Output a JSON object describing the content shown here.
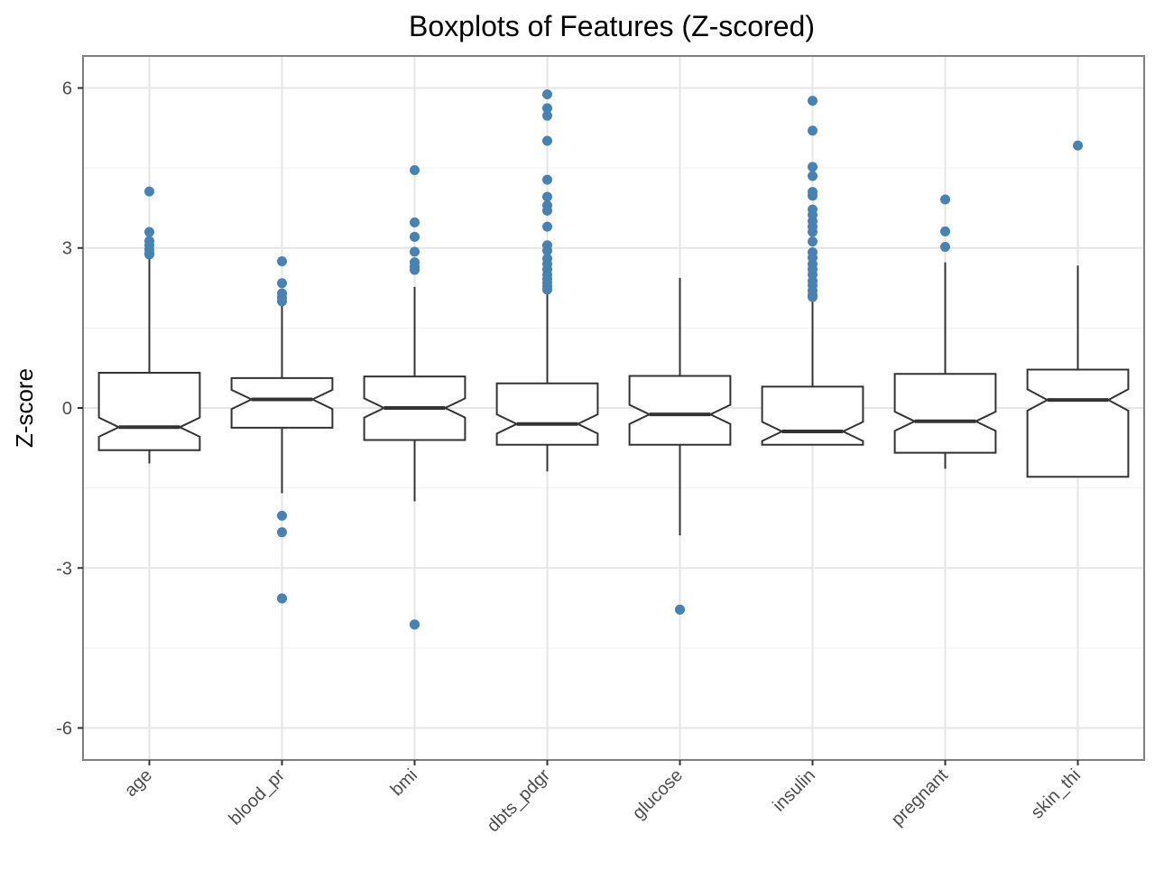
{
  "chart_data": {
    "type": "boxplot",
    "title": "Boxplots of Features (Z-scored)",
    "xlabel": "",
    "ylabel": "Z-score",
    "ylim": [
      -6.6,
      6.6
    ],
    "yticks": [
      -6,
      -3,
      0,
      3,
      6
    ],
    "ytick_labels": [
      "-6",
      "-3",
      "0",
      "3",
      "6"
    ],
    "grid": true,
    "notched": true,
    "colors": {
      "box_line": "#333333",
      "outlier": "#4682b4",
      "grid_major": "#e5e5e5",
      "grid_minor": "#f2f2f2",
      "panel_border": "#7f7f7f"
    },
    "categories": [
      "age",
      "blood_pr",
      "bmi",
      "dbts_pdgr",
      "glucose",
      "insulin",
      "pregnant",
      "skin_thi"
    ],
    "boxes": [
      {
        "name": "age",
        "whisker_low": -1.04,
        "q1": -0.79,
        "median": -0.36,
        "q3": 0.66,
        "whisker_high": 2.8,
        "notch_low": -0.28,
        "notch_high": -0.44,
        "outliers": [
          4.06,
          3.3,
          3.13,
          3.05,
          2.97,
          2.88,
          2.9
        ]
      },
      {
        "name": "blood_pr",
        "whisker_low": -1.6,
        "q1": -0.37,
        "median": 0.16,
        "q3": 0.56,
        "whisker_high": 1.99,
        "notch_low": 0.15,
        "notch_high": 0.15,
        "outliers": [
          2.75,
          2.34,
          2.15,
          2.07,
          2.0,
          -2.02,
          -2.33,
          -3.57,
          -3.57
        ]
      },
      {
        "name": "bmi",
        "whisker_low": -1.75,
        "q1": -0.6,
        "median": 0.0,
        "q3": 0.59,
        "whisker_high": 2.27,
        "notch_low": 0.0,
        "notch_high": 0.0,
        "outliers": [
          4.46,
          3.48,
          3.21,
          2.93,
          2.73,
          2.65,
          2.59,
          -4.06,
          -4.06
        ]
      },
      {
        "name": "dbts_pdgr",
        "whisker_low": -1.19,
        "q1": -0.69,
        "median": -0.3,
        "q3": 0.46,
        "whisker_high": 2.21,
        "notch_low": -0.3,
        "notch_high": -0.3,
        "outliers": [
          5.88,
          5.62,
          5.48,
          5.01,
          4.28,
          3.96,
          3.8,
          3.7,
          3.4,
          3.05,
          2.95,
          2.8,
          2.7,
          2.6,
          2.5,
          2.42,
          2.35,
          2.28,
          2.22
        ]
      },
      {
        "name": "glucose",
        "whisker_low": -2.39,
        "q1": -0.69,
        "median": -0.12,
        "q3": 0.6,
        "whisker_high": 2.44,
        "notch_low": -0.12,
        "notch_high": -0.12,
        "outliers": [
          -3.78,
          -3.78
        ]
      },
      {
        "name": "insulin",
        "whisker_low": -0.69,
        "q1": -0.69,
        "median": -0.44,
        "q3": 0.4,
        "whisker_high": 2.05,
        "notch_low": -0.44,
        "notch_high": -0.44,
        "outliers": [
          5.76,
          5.2,
          4.52,
          4.35,
          4.05,
          3.98,
          3.72,
          3.62,
          3.5,
          3.4,
          3.3,
          3.12,
          2.92,
          2.82,
          2.7,
          2.6,
          2.5,
          2.38,
          2.3,
          2.2,
          2.12,
          2.08
        ]
      },
      {
        "name": "pregnant",
        "whisker_low": -1.14,
        "q1": -0.84,
        "median": -0.25,
        "q3": 0.64,
        "whisker_high": 2.73,
        "notch_low": -0.25,
        "notch_high": -0.25,
        "outliers": [
          3.91,
          3.31,
          3.02
        ]
      },
      {
        "name": "skin_thi",
        "whisker_low": -1.29,
        "q1": -1.29,
        "median": 0.15,
        "q3": 0.72,
        "whisker_high": 2.67,
        "notch_low": 0.15,
        "notch_high": 0.15,
        "outliers": [
          4.92
        ]
      }
    ]
  }
}
